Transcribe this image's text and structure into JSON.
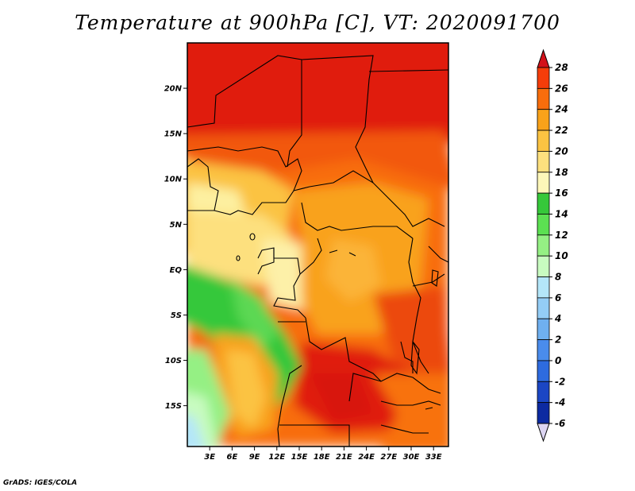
{
  "title": "Temperature at 900hPa [C], VT: 2020091700",
  "credit": "GrADS: IGES/COLA",
  "map": {
    "lon_labels": [
      "3E",
      "6E",
      "9E",
      "12E",
      "15E",
      "18E",
      "21E",
      "24E",
      "27E",
      "30E",
      "33E"
    ],
    "lat_labels": [
      "20N",
      "15N",
      "10N",
      "5N",
      "EQ",
      "5S",
      "10S",
      "15S"
    ],
    "lon_range_deg": [
      0,
      35
    ],
    "lat_range_deg": [
      -19.5,
      25
    ]
  },
  "colorbar": {
    "labels": [
      "28",
      "26",
      "24",
      "22",
      "20",
      "18",
      "16",
      "14",
      "12",
      "10",
      "8",
      "6",
      "4",
      "2",
      "0",
      "-2",
      "-4",
      "-6"
    ],
    "colors": [
      "#e8120a",
      "#f53d0a",
      "#f86d0c",
      "#f9a21a",
      "#fbc342",
      "#fde07e",
      "#fdf7b9",
      "#36c83a",
      "#5ce052",
      "#95f084",
      "#c8fbc0",
      "#b4e6f9",
      "#94cdf6",
      "#6fb0f0",
      "#4a8cec",
      "#2e6bdf",
      "#1b46c4",
      "#0c2aa1",
      "#101a6e"
    ],
    "over_color": "#d2121a",
    "under_color": "#dcd5f2"
  }
}
